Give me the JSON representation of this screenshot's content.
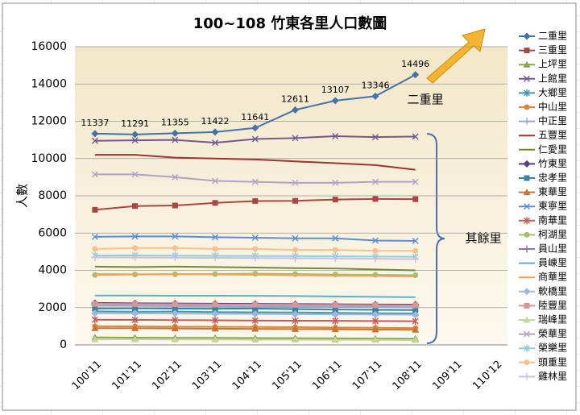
{
  "chart_data": {
    "type": "line",
    "title": "100~108 竹東各里人口數圖",
    "y_label": "人數",
    "annotations": [
      "二重里",
      "其餘里"
    ],
    "categories": [
      "100'11",
      "101'11",
      "102'11",
      "103'11",
      "104'11",
      "105'11",
      "106'11",
      "107'11",
      "108'11",
      "109'11",
      "110'12"
    ],
    "ylim": [
      0,
      16000
    ],
    "yticks": [
      0,
      2000,
      4000,
      6000,
      8000,
      10000,
      12000,
      14000,
      16000
    ],
    "grid": true,
    "legend": "right",
    "series": [
      {
        "name": "二重里",
        "color": "#4572a7",
        "marker": "diamond",
        "labels": true,
        "values": [
          11337,
          11291,
          11355,
          11422,
          11641,
          12611,
          13107,
          13346,
          14496,
          null,
          null
        ]
      },
      {
        "name": "三重里",
        "color": "#aa4643",
        "marker": "square",
        "values": [
          7250,
          7450,
          7480,
          7620,
          7720,
          7730,
          7800,
          7830,
          7820,
          null,
          null
        ]
      },
      {
        "name": "上坪里",
        "color": "#89a54e",
        "marker": "triangle",
        "values": [
          400,
          390,
          380,
          380,
          370,
          360,
          350,
          340,
          330,
          null,
          null
        ]
      },
      {
        "name": "上館里",
        "color": "#71588f",
        "marker": "x",
        "values": [
          10950,
          10980,
          11000,
          10850,
          11050,
          11100,
          11200,
          11150,
          11180,
          null,
          null
        ]
      },
      {
        "name": "大鄉里",
        "color": "#4198af",
        "marker": "star",
        "values": [
          1800,
          1780,
          1790,
          1760,
          1750,
          1740,
          1720,
          1700,
          1690,
          null,
          null
        ]
      },
      {
        "name": "中山里",
        "color": "#db843d",
        "marker": "circle",
        "values": [
          1000,
          990,
          980,
          970,
          960,
          950,
          930,
          920,
          900,
          null,
          null
        ]
      },
      {
        "name": "中正里",
        "color": "#93a9cf",
        "marker": "plus",
        "values": [
          2100,
          2090,
          2080,
          2070,
          2060,
          2050,
          2040,
          2030,
          2020,
          null,
          null
        ]
      },
      {
        "name": "五豐里",
        "color": "#a0322f",
        "marker": "none",
        "values": [
          10200,
          10200,
          10050,
          10000,
          9950,
          9850,
          9750,
          9650,
          9400,
          null,
          null
        ]
      },
      {
        "name": "仁愛里",
        "color": "#6e8a3a",
        "marker": "none",
        "values": [
          4200,
          4180,
          4200,
          4180,
          4150,
          4120,
          4100,
          4050,
          4000,
          null,
          null
        ]
      },
      {
        "name": "竹東里",
        "color": "#5b3f7e",
        "marker": "diamond",
        "values": [
          2250,
          2230,
          2220,
          2210,
          2200,
          2190,
          2180,
          2170,
          2160,
          null,
          null
        ]
      },
      {
        "name": "忠孝里",
        "color": "#3586a0",
        "marker": "square",
        "values": [
          1950,
          1960,
          1950,
          1940,
          1950,
          1920,
          1900,
          1880,
          1870,
          null,
          null
        ]
      },
      {
        "name": "東華里",
        "color": "#c8732f",
        "marker": "triangle",
        "values": [
          900,
          890,
          880,
          870,
          860,
          850,
          840,
          820,
          810,
          null,
          null
        ]
      },
      {
        "name": "東寧里",
        "color": "#5b8fd2",
        "marker": "x",
        "values": [
          5800,
          5820,
          5820,
          5780,
          5750,
          5720,
          5720,
          5600,
          5580,
          null,
          null
        ]
      },
      {
        "name": "南華里",
        "color": "#c85a57",
        "marker": "star",
        "values": [
          1350,
          1340,
          1330,
          1320,
          1310,
          1300,
          1290,
          1280,
          1270,
          null,
          null
        ]
      },
      {
        "name": "柯湖里",
        "color": "#a3c06a",
        "marker": "circle",
        "values": [
          3750,
          3780,
          3790,
          3800,
          3820,
          3800,
          3780,
          3760,
          3740,
          null,
          null
        ]
      },
      {
        "name": "員山里",
        "color": "#8c74aa",
        "marker": "plus",
        "values": [
          2200,
          2180,
          2170,
          2160,
          2150,
          2140,
          2130,
          2120,
          2110,
          null,
          null
        ]
      },
      {
        "name": "員崠里",
        "color": "#5cb1c9",
        "marker": "none",
        "values": [
          2650,
          2650,
          2640,
          2640,
          2630,
          2620,
          2600,
          2580,
          2560,
          null,
          null
        ]
      },
      {
        "name": "商華里",
        "color": "#f0a05a",
        "marker": "none",
        "values": [
          3800,
          3790,
          3800,
          3780,
          3760,
          3740,
          3720,
          3700,
          3680,
          null,
          null
        ]
      },
      {
        "name": "軟橋里",
        "color": "#9db8dc",
        "marker": "diamond",
        "values": [
          1700,
          1690,
          1680,
          1670,
          1660,
          1650,
          1640,
          1630,
          1620,
          null,
          null
        ]
      },
      {
        "name": "陸豐里",
        "color": "#d99694",
        "marker": "square",
        "values": [
          2200,
          2190,
          2180,
          2170,
          2160,
          2150,
          2140,
          2130,
          2120,
          null,
          null
        ]
      },
      {
        "name": "瑞峰里",
        "color": "#c3d69b",
        "marker": "triangle",
        "values": [
          300,
          300,
          290,
          290,
          280,
          280,
          270,
          270,
          260,
          null,
          null
        ]
      },
      {
        "name": "榮華里",
        "color": "#b3a2c7",
        "marker": "x",
        "values": [
          9150,
          9150,
          9000,
          8800,
          8750,
          8700,
          8700,
          8750,
          8750,
          null,
          null
        ]
      },
      {
        "name": "榮樂里",
        "color": "#93cddd",
        "marker": "star",
        "values": [
          4800,
          4800,
          4790,
          4780,
          4770,
          4760,
          4750,
          4740,
          4730,
          null,
          null
        ]
      },
      {
        "name": "頭重里",
        "color": "#fac090",
        "marker": "circle",
        "values": [
          5150,
          5200,
          5200,
          5150,
          5150,
          5100,
          5100,
          5050,
          5050,
          null,
          null
        ]
      },
      {
        "name": "雞林里",
        "color": "#ccc1da",
        "marker": "plus",
        "values": [
          4700,
          4690,
          4680,
          4670,
          4660,
          4650,
          4640,
          4620,
          4600,
          null,
          null
        ]
      }
    ]
  }
}
